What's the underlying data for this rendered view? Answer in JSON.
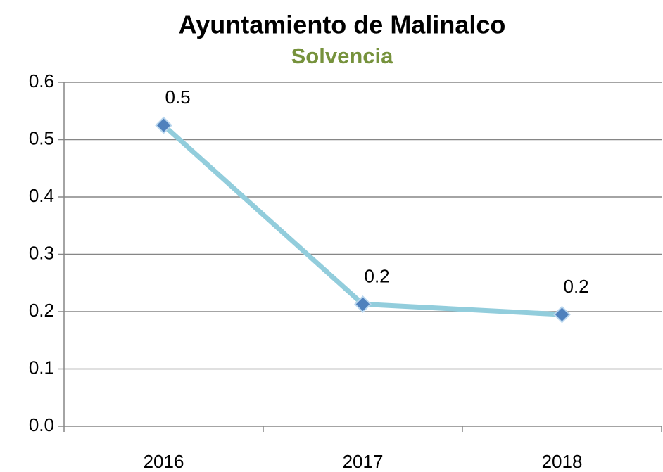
{
  "chart_data": {
    "type": "line",
    "title": "Ayuntamiento de Malinalco",
    "subtitle": "Solvencia",
    "categories": [
      "2016",
      "2017",
      "2018"
    ],
    "series": [
      {
        "name": "Solvencia",
        "color": "#92cddc",
        "marker_color": "#4f81bd",
        "values": [
          0.525,
          0.213,
          0.195
        ],
        "value_labels": [
          "0.5",
          "0.2",
          "0.2"
        ]
      }
    ],
    "ylim": [
      0,
      0.6
    ],
    "yticks": [
      {
        "value": 0,
        "label": "0.0"
      },
      0.1,
      0.2,
      0.3,
      0.4,
      0.5,
      0.6
    ],
    "grid": true
  }
}
